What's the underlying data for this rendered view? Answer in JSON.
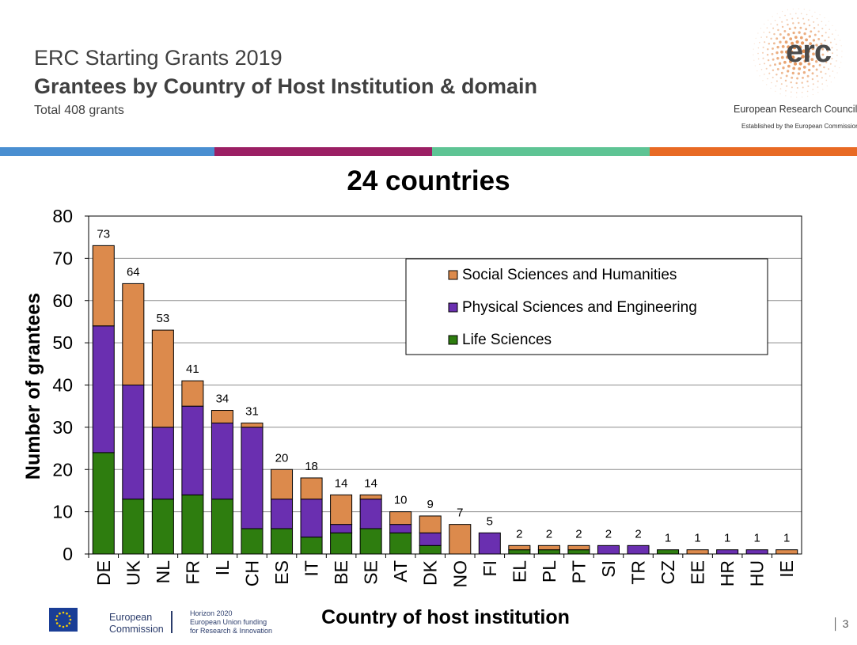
{
  "header": {
    "title": "ERC Starting Grants 2019",
    "subtitle": "Grantees by Country of Host Institution & domain",
    "total": "Total 408 grants"
  },
  "logo": {
    "word": "erc",
    "name": "European Research Council",
    "established": "Established by the European Commission"
  },
  "stripe_colors": [
    "#4a8fd1",
    "#9b1f64",
    "#5ec494",
    "#e86a24"
  ],
  "footer": {
    "ec_line1": "European",
    "ec_line2": "Commission",
    "h2020_line1": "Horizon 2020",
    "h2020_line2": "European Union funding",
    "h2020_line3": "for Research & Innovation",
    "page_number": "3"
  },
  "chart_data": {
    "type": "bar",
    "stacked": true,
    "title": "24 countries",
    "xlabel": "Country of host institution",
    "ylabel": "Number of grantees",
    "ylim": [
      0,
      80
    ],
    "yticks": [
      0,
      10,
      20,
      30,
      40,
      50,
      60,
      70,
      80
    ],
    "grid": true,
    "legend_position": "top-right",
    "categories": [
      "DE",
      "UK",
      "NL",
      "FR",
      "IL",
      "CH",
      "ES",
      "IT",
      "BE",
      "SE",
      "AT",
      "DK",
      "NO",
      "FI",
      "EL",
      "PL",
      "PT",
      "SI",
      "TR",
      "CZ",
      "EE",
      "HR",
      "HU",
      "IE"
    ],
    "totals": [
      73,
      64,
      53,
      41,
      34,
      31,
      20,
      18,
      14,
      14,
      10,
      9,
      7,
      5,
      2,
      2,
      2,
      2,
      2,
      1,
      1,
      1,
      1,
      1
    ],
    "series": [
      {
        "name": "Life Sciences",
        "color": "#2e7d0f",
        "values": [
          24,
          13,
          13,
          14,
          13,
          6,
          6,
          4,
          5,
          6,
          5,
          2,
          0,
          0,
          1,
          1,
          1,
          0,
          0,
          1,
          0,
          0,
          0,
          0
        ]
      },
      {
        "name": "Physical Sciences and Engineering",
        "color": "#6a2fb0",
        "values": [
          30,
          27,
          17,
          21,
          18,
          24,
          7,
          9,
          2,
          7,
          2,
          3,
          0,
          5,
          0,
          0,
          0,
          2,
          2,
          0,
          0,
          1,
          1,
          0
        ]
      },
      {
        "name": "Social Sciences and Humanities",
        "color": "#dc8a4c",
        "values": [
          19,
          24,
          23,
          6,
          3,
          1,
          7,
          5,
          7,
          1,
          3,
          4,
          7,
          0,
          1,
          1,
          1,
          0,
          0,
          0,
          1,
          0,
          0,
          1
        ]
      }
    ]
  }
}
